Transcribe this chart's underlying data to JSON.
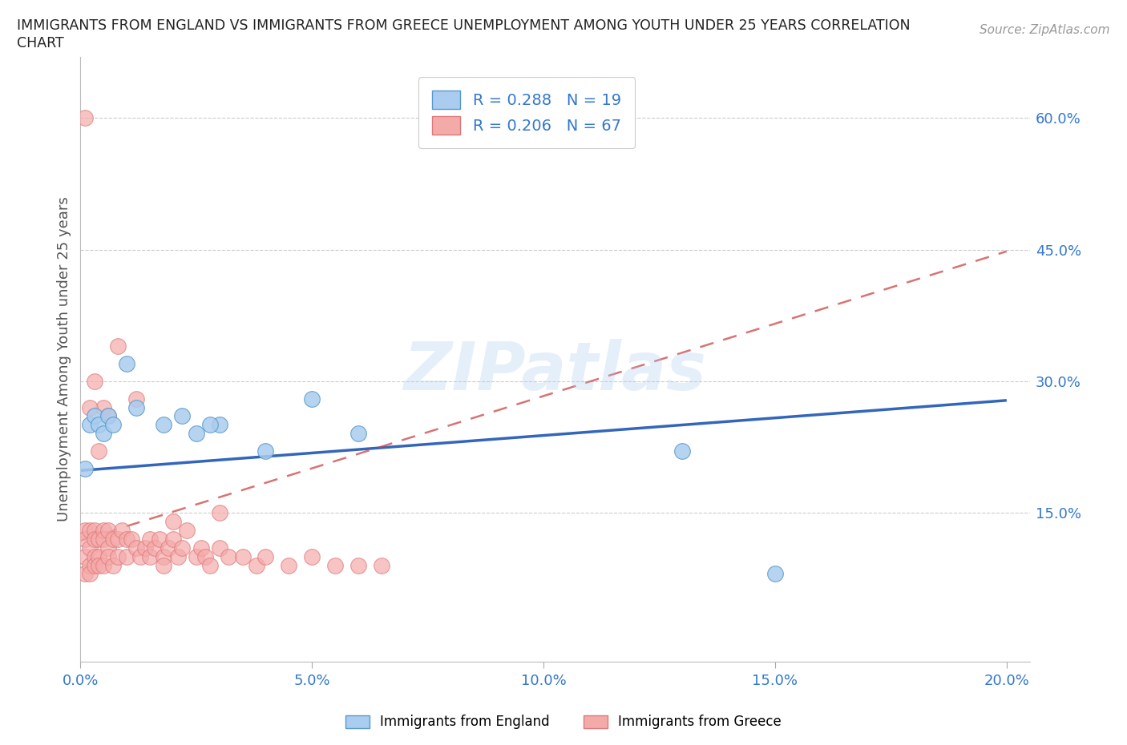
{
  "title_line1": "IMMIGRANTS FROM ENGLAND VS IMMIGRANTS FROM GREECE UNEMPLOYMENT AMONG YOUTH UNDER 25 YEARS CORRELATION",
  "title_line2": "CHART",
  "source": "Source: ZipAtlas.com",
  "ylabel": "Unemployment Among Youth under 25 years",
  "watermark": "ZIPatlas",
  "england_R": 0.288,
  "england_N": 19,
  "greece_R": 0.206,
  "greece_N": 67,
  "england_color": "#aaccee",
  "england_edge_color": "#5599cc",
  "greece_color": "#f5aaaa",
  "greece_edge_color": "#dd7777",
  "england_line_color": "#3366bb",
  "greece_line_color": "#cc4444",
  "xlim": [
    0.0,
    0.205
  ],
  "ylim": [
    -0.02,
    0.67
  ],
  "ytick_positions": [
    0.15,
    0.3,
    0.45,
    0.6
  ],
  "ytick_labels": [
    "15.0%",
    "30.0%",
    "45.0%",
    "60.0%"
  ],
  "xtick_positions": [
    0.0,
    0.05,
    0.1,
    0.15,
    0.2
  ],
  "xtick_labels": [
    "0.0%",
    "5.0%",
    "10.0%",
    "15.0%",
    "20.0%"
  ],
  "england_trend_x": [
    0.0,
    0.2
  ],
  "england_trend_y": [
    0.198,
    0.278
  ],
  "greece_trend_x": [
    0.0,
    0.2
  ],
  "greece_trend_y": [
    0.118,
    0.448
  ],
  "england_x": [
    0.001,
    0.002,
    0.003,
    0.004,
    0.005,
    0.006,
    0.007,
    0.01,
    0.012,
    0.018,
    0.022,
    0.025,
    0.03,
    0.05,
    0.06,
    0.13,
    0.15,
    0.028,
    0.04
  ],
  "england_y": [
    0.2,
    0.25,
    0.26,
    0.25,
    0.24,
    0.26,
    0.25,
    0.32,
    0.27,
    0.25,
    0.26,
    0.24,
    0.25,
    0.28,
    0.24,
    0.22,
    0.08,
    0.25,
    0.22
  ],
  "greece_x": [
    0.001,
    0.001,
    0.001,
    0.001,
    0.002,
    0.002,
    0.002,
    0.002,
    0.003,
    0.003,
    0.003,
    0.003,
    0.004,
    0.004,
    0.004,
    0.005,
    0.005,
    0.005,
    0.006,
    0.006,
    0.006,
    0.007,
    0.007,
    0.008,
    0.008,
    0.009,
    0.01,
    0.01,
    0.011,
    0.012,
    0.013,
    0.014,
    0.015,
    0.015,
    0.016,
    0.017,
    0.018,
    0.019,
    0.02,
    0.021,
    0.022,
    0.023,
    0.025,
    0.026,
    0.027,
    0.028,
    0.03,
    0.032,
    0.035,
    0.038,
    0.04,
    0.045,
    0.05,
    0.055,
    0.06,
    0.065,
    0.03,
    0.02,
    0.018,
    0.012,
    0.008,
    0.005,
    0.003,
    0.002,
    0.001,
    0.004,
    0.006
  ],
  "greece_y": [
    0.13,
    0.12,
    0.1,
    0.08,
    0.13,
    0.11,
    0.09,
    0.08,
    0.13,
    0.12,
    0.1,
    0.09,
    0.12,
    0.1,
    0.09,
    0.13,
    0.12,
    0.09,
    0.13,
    0.11,
    0.1,
    0.12,
    0.09,
    0.12,
    0.1,
    0.13,
    0.12,
    0.1,
    0.12,
    0.11,
    0.1,
    0.11,
    0.12,
    0.1,
    0.11,
    0.12,
    0.1,
    0.11,
    0.12,
    0.1,
    0.11,
    0.13,
    0.1,
    0.11,
    0.1,
    0.09,
    0.11,
    0.1,
    0.1,
    0.09,
    0.1,
    0.09,
    0.1,
    0.09,
    0.09,
    0.09,
    0.15,
    0.14,
    0.09,
    0.28,
    0.34,
    0.27,
    0.3,
    0.27,
    0.6,
    0.22,
    0.26
  ],
  "background_color": "#ffffff",
  "grid_color": "#cccccc",
  "title_color": "#222222",
  "axis_label_color": "#555555",
  "tick_label_color": "#3377cc",
  "legend_text_color": "#3377cc"
}
